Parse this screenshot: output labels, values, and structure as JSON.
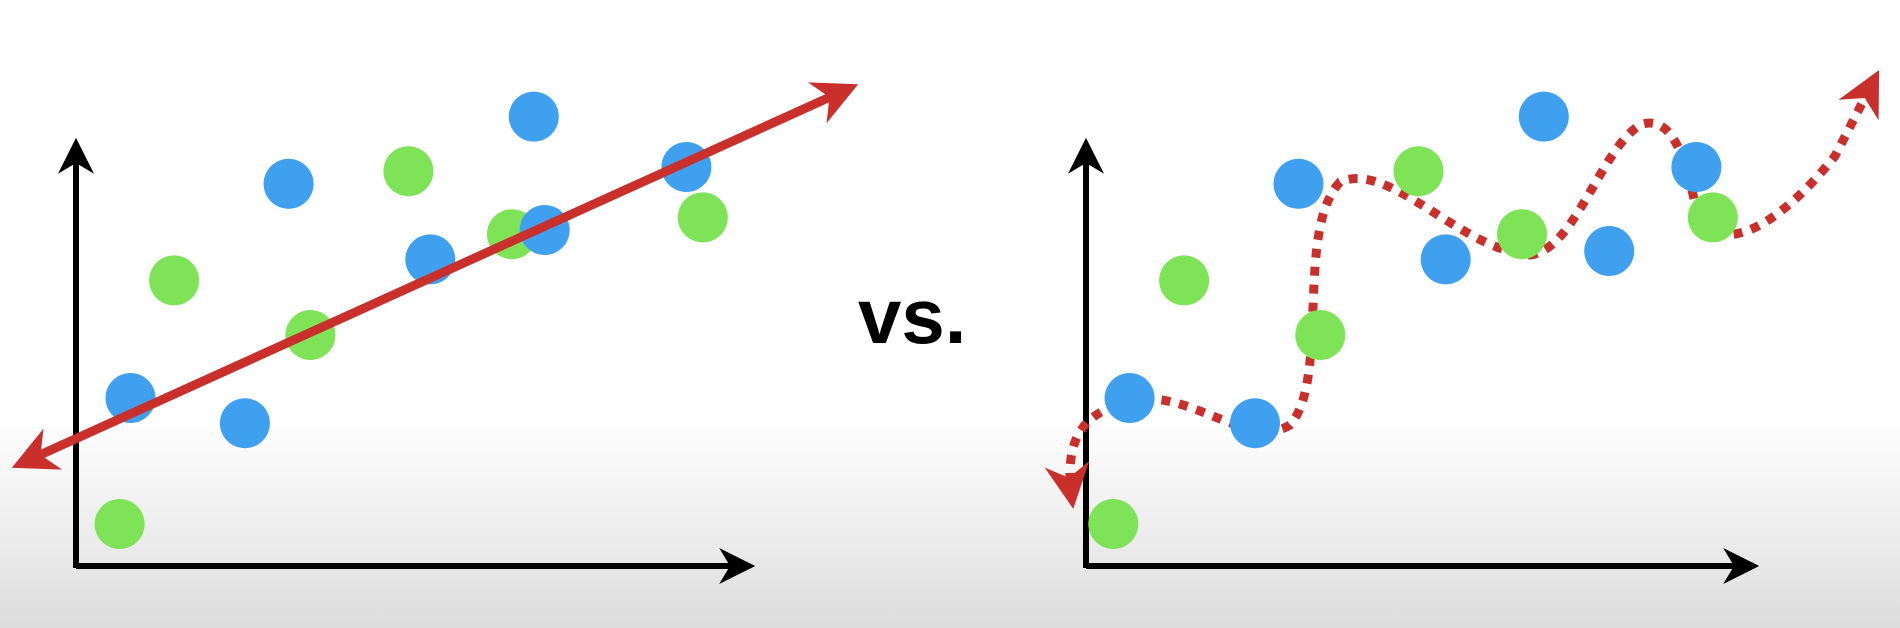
{
  "vs_label": "vs.",
  "colors": {
    "green_point": "#7ee356",
    "blue_point": "#3fa0f0",
    "fit_line": "#c9302c",
    "axes": "#000000"
  },
  "panels": [
    {
      "id": "left",
      "fit_style": "straight-line",
      "points": [
        {
          "x": 0.08,
          "y": 0.1,
          "color": "green"
        },
        {
          "x": 0.1,
          "y": 0.4,
          "color": "blue"
        },
        {
          "x": 0.18,
          "y": 0.68,
          "color": "green"
        },
        {
          "x": 0.31,
          "y": 0.34,
          "color": "blue"
        },
        {
          "x": 0.39,
          "y": 0.91,
          "color": "blue"
        },
        {
          "x": 0.43,
          "y": 0.55,
          "color": "green"
        },
        {
          "x": 0.61,
          "y": 0.94,
          "color": "green"
        },
        {
          "x": 0.65,
          "y": 0.73,
          "color": "blue"
        },
        {
          "x": 0.8,
          "y": 0.79,
          "color": "green"
        },
        {
          "x": 0.86,
          "y": 0.8,
          "color": "blue"
        },
        {
          "x": 0.84,
          "y": 1.07,
          "color": "blue"
        },
        {
          "x": 1.12,
          "y": 0.95,
          "color": "blue"
        },
        {
          "x": 1.15,
          "y": 0.83,
          "color": "green"
        }
      ]
    },
    {
      "id": "right",
      "fit_style": "wiggly-dotted-curve",
      "points": [
        {
          "x": 0.05,
          "y": 0.1,
          "color": "green"
        },
        {
          "x": 0.08,
          "y": 0.4,
          "color": "blue"
        },
        {
          "x": 0.18,
          "y": 0.68,
          "color": "green"
        },
        {
          "x": 0.31,
          "y": 0.34,
          "color": "blue"
        },
        {
          "x": 0.39,
          "y": 0.91,
          "color": "blue"
        },
        {
          "x": 0.43,
          "y": 0.55,
          "color": "green"
        },
        {
          "x": 0.61,
          "y": 0.94,
          "color": "green"
        },
        {
          "x": 0.66,
          "y": 0.73,
          "color": "blue"
        },
        {
          "x": 0.8,
          "y": 0.79,
          "color": "green"
        },
        {
          "x": 0.84,
          "y": 1.07,
          "color": "blue"
        },
        {
          "x": 0.96,
          "y": 0.75,
          "color": "blue"
        },
        {
          "x": 1.12,
          "y": 0.95,
          "color": "blue"
        },
        {
          "x": 1.15,
          "y": 0.83,
          "color": "green"
        }
      ]
    }
  ]
}
